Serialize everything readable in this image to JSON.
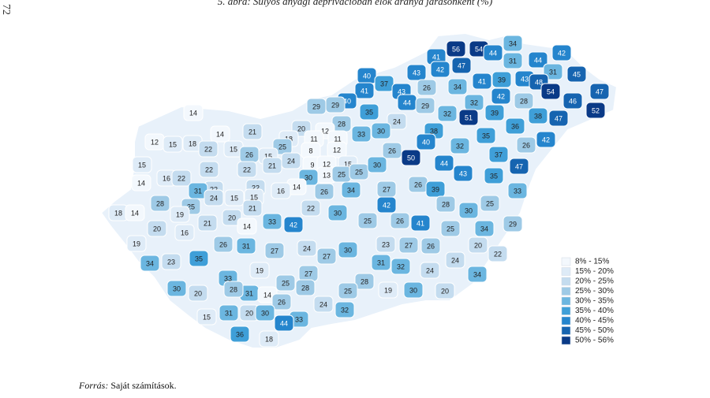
{
  "page_number": "72",
  "header": {
    "title": "5. ábra: Súlyos anyagi deprivációban élők aránya járásonként (%)"
  },
  "map": {
    "legend": [
      {
        "label": "8% - 15%",
        "color": "#f3f8fd"
      },
      {
        "label": "15% - 20%",
        "color": "#deebf7"
      },
      {
        "label": "20% - 25%",
        "color": "#c4dcef"
      },
      {
        "label": "25% - 30%",
        "color": "#9ecae6"
      },
      {
        "label": "30% - 35%",
        "color": "#6bb6e0"
      },
      {
        "label": "35% - 40%",
        "color": "#3f9fd8"
      },
      {
        "label": "40% - 45%",
        "color": "#2585cd"
      },
      {
        "label": "45% - 50%",
        "color": "#1664b0"
      },
      {
        "label": "50% - 56%",
        "color": "#0a3a87"
      }
    ],
    "districts": [
      56,
      54,
      34,
      41,
      44,
      31,
      44,
      42,
      43,
      42,
      47,
      41,
      39,
      43,
      31,
      45,
      40,
      37,
      43,
      44,
      48,
      54,
      47,
      46,
      52,
      26,
      34,
      42,
      28,
      41,
      40,
      29,
      29,
      32,
      39,
      38,
      35,
      29,
      32,
      51,
      47,
      14,
      28,
      24,
      36,
      20,
      21,
      12,
      30,
      38,
      14,
      18,
      11,
      11,
      33,
      35,
      42,
      12,
      15,
      18,
      22,
      15,
      25,
      26,
      15,
      8,
      12,
      40,
      32,
      26,
      26,
      37,
      15,
      22,
      24,
      9,
      12,
      15,
      50,
      44,
      47,
      22,
      21,
      14,
      16,
      22,
      13,
      25,
      25,
      30,
      43,
      35,
      30,
      14,
      16,
      22,
      22,
      31,
      26,
      34,
      26,
      27,
      39,
      33,
      28,
      24,
      15,
      15,
      25,
      21,
      22,
      42,
      28,
      25,
      18,
      14,
      19,
      20,
      21,
      33,
      42,
      30,
      25,
      26,
      41,
      30,
      34,
      29,
      20,
      16,
      14,
      25,
      19,
      26,
      31,
      27,
      24,
      27,
      30,
      23,
      27,
      26,
      20,
      22,
      34,
      23,
      35,
      24,
      31,
      32,
      24,
      19,
      33,
      27,
      25,
      28,
      34,
      31,
      30,
      20,
      28,
      14,
      28,
      25,
      19,
      30,
      20,
      26,
      24,
      31,
      20,
      30,
      32,
      15,
      33,
      44,
      36,
      18
    ]
  },
  "source": {
    "label": "Forrás:",
    "text": "Saját számítások."
  }
}
